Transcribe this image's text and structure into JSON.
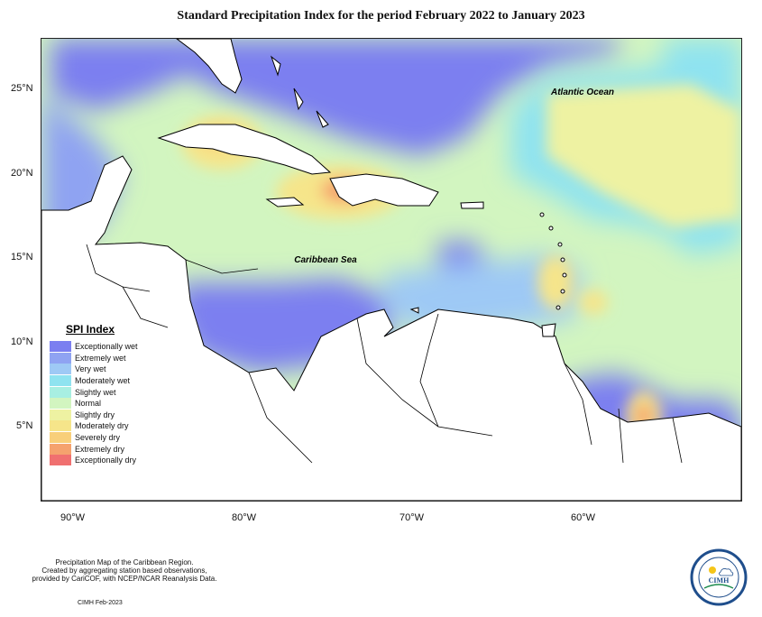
{
  "title": "Standard Precipitation Index for the period February 2022 to January 2023",
  "map": {
    "labels": {
      "atlantic": "Atlantic Ocean",
      "caribbean": "Caribbean Sea"
    },
    "lat_ticks": [
      "25°N",
      "20°N",
      "15°N",
      "10°N",
      "5°N"
    ],
    "lon_ticks": [
      "90°W",
      "80°W",
      "70°W",
      "60°W"
    ],
    "extent": {
      "lon": [
        -92.5,
        -51.0
      ],
      "lat": [
        0.8,
        28.2
      ]
    }
  },
  "legend": {
    "title": "SPI Index",
    "items": [
      {
        "label": "Exceptionally wet",
        "color": "#7b7ff0"
      },
      {
        "label": "Extremely wet",
        "color": "#8fa3f2"
      },
      {
        "label": "Very wet",
        "color": "#9ec9f5"
      },
      {
        "label": "Moderately wet",
        "color": "#8fe3f0"
      },
      {
        "label": "Slightly wet",
        "color": "#a8efe2"
      },
      {
        "label": "Normal",
        "color": "#d2f5c0"
      },
      {
        "label": "Slightly dry",
        "color": "#eef2a2"
      },
      {
        "label": "Moderately dry",
        "color": "#f6e58a"
      },
      {
        "label": "Severely dry",
        "color": "#f8cf7a"
      },
      {
        "label": "Extremely dry",
        "color": "#f5a26e"
      },
      {
        "label": "Exceptionally dry",
        "color": "#f07070"
      }
    ]
  },
  "footer": {
    "line1": "Precipitation Map of the Caribbean Region.",
    "line2": "Created by aggregating station based observations,",
    "line3": "provided by CariCOF, with NCEP/NCAR Reanalysis Data.",
    "stamp": "CIMH Feb-2023"
  },
  "logo": {
    "text": "CIMH",
    "ring_text": "Caribbean Institute for Meteorology and Hydrology"
  }
}
